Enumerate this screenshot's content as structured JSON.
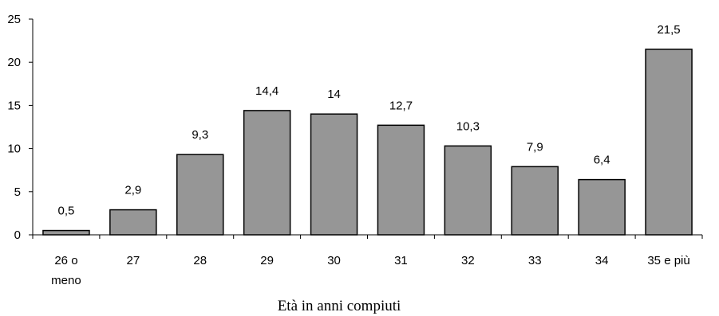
{
  "chart_data": {
    "type": "bar",
    "categories": [
      [
        "26 o",
        "meno"
      ],
      [
        "27"
      ],
      [
        "28"
      ],
      [
        "29"
      ],
      [
        "30"
      ],
      [
        "31"
      ],
      [
        "32"
      ],
      [
        "33"
      ],
      [
        "34"
      ],
      [
        "35 e più"
      ]
    ],
    "values": [
      0.5,
      2.9,
      9.3,
      14.4,
      14,
      12.7,
      10.3,
      7.9,
      6.4,
      21.5
    ],
    "value_labels": [
      "0,5",
      "2,9",
      "9,3",
      "14,4",
      "14",
      "12,7",
      "10,3",
      "7,9",
      "6,4",
      "21,5"
    ],
    "yticks": [
      0,
      5,
      10,
      15,
      20,
      25
    ],
    "ylim": [
      0,
      25
    ],
    "xlabel": "Età in anni compiuti",
    "ylabel": "",
    "title": "",
    "grid": false,
    "legend": "none",
    "colors": {
      "bar_fill": "#969696",
      "bar_stroke": "#000000",
      "axis": "#000000"
    }
  }
}
